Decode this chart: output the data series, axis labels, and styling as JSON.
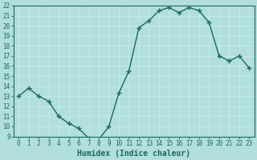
{
  "title": "",
  "xlabel": "Humidex (Indice chaleur)",
  "ylabel": "",
  "x_values": [
    0,
    1,
    2,
    3,
    4,
    5,
    6,
    7,
    8,
    9,
    10,
    11,
    12,
    13,
    14,
    15,
    16,
    17,
    18,
    19,
    20,
    21,
    22,
    23
  ],
  "y_values": [
    13.0,
    13.8,
    13.0,
    12.5,
    11.0,
    10.3,
    9.8,
    8.8,
    8.7,
    10.0,
    13.3,
    15.5,
    19.8,
    20.5,
    21.5,
    21.8,
    21.3,
    21.8,
    21.5,
    20.3,
    17.0,
    16.5,
    17.0,
    15.8
  ],
  "line_color": "#1a6b5a",
  "marker": "+",
  "marker_size": 4,
  "marker_linewidth": 1.0,
  "bg_color": "#b2dede",
  "grid_color": "#c8eded",
  "xlim": [
    -0.5,
    23.5
  ],
  "ylim": [
    9,
    22
  ],
  "yticks": [
    9,
    10,
    11,
    12,
    13,
    14,
    15,
    16,
    17,
    18,
    19,
    20,
    21,
    22
  ],
  "xticks": [
    0,
    1,
    2,
    3,
    4,
    5,
    6,
    7,
    8,
    9,
    10,
    11,
    12,
    13,
    14,
    15,
    16,
    17,
    18,
    19,
    20,
    21,
    22,
    23
  ],
  "tick_fontsize": 5.5,
  "xlabel_fontsize": 7,
  "linewidth": 1.0
}
